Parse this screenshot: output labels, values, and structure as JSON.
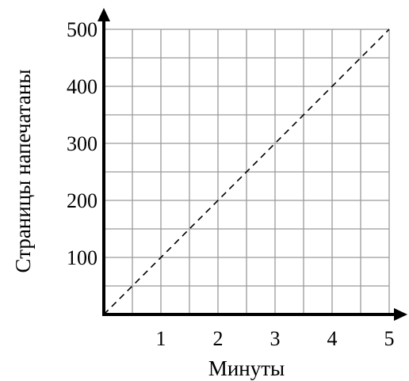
{
  "chart_data": {
    "type": "line",
    "title": "",
    "xlabel": "Минуты",
    "ylabel": "Страницы напечатаны",
    "xlim": [
      0,
      5
    ],
    "ylim": [
      0,
      500
    ],
    "x_ticks": [
      1,
      2,
      3,
      4,
      5
    ],
    "x_tick_labels": [
      "1",
      "2",
      "3",
      "4",
      "5"
    ],
    "y_ticks": [
      100,
      200,
      300,
      400,
      500
    ],
    "y_tick_labels": [
      "100",
      "200",
      "300",
      "400",
      "500"
    ],
    "grid": true,
    "grid_x_step": 0.5,
    "grid_y_step": 50,
    "series": [
      {
        "x": [
          0,
          5
        ],
        "y": [
          0,
          500
        ],
        "style": "dashed",
        "color": "#000000"
      }
    ]
  }
}
